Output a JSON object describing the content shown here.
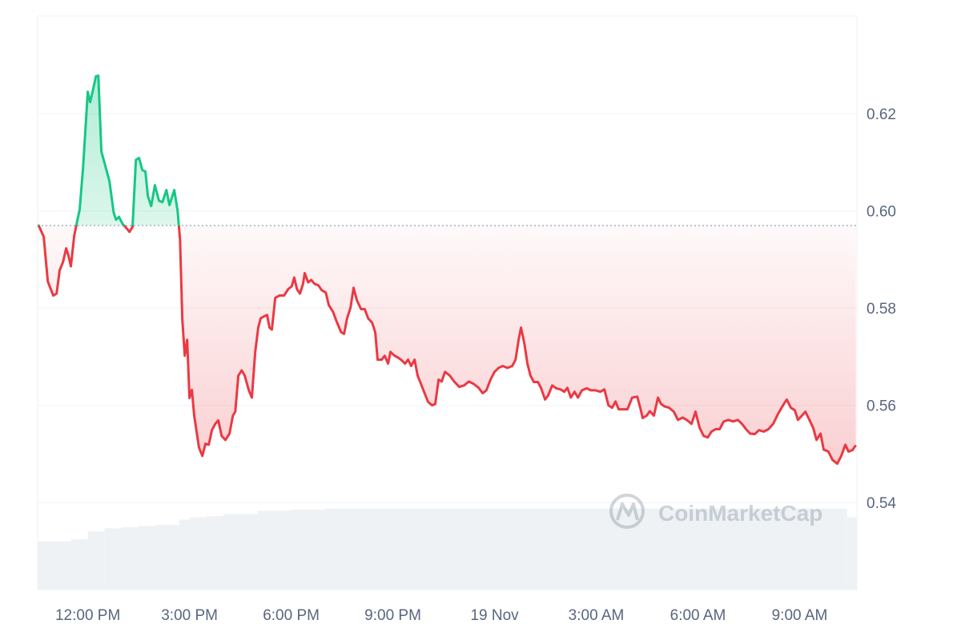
{
  "chart_data": {
    "type": "line",
    "watermark": "CoinMarketCap",
    "baseline": 0.597,
    "up_color": "#16c784",
    "down_color": "#ea3943",
    "grid": true,
    "xlim": [
      10.52,
      34.69
    ],
    "xticks": [
      {
        "value": 12,
        "label": "12:00 PM"
      },
      {
        "value": 15,
        "label": "3:00 PM"
      },
      {
        "value": 18,
        "label": "6:00 PM"
      },
      {
        "value": 21,
        "label": "9:00 PM"
      },
      {
        "value": 24,
        "label": "19 Nov"
      },
      {
        "value": 27,
        "label": "3:00 AM"
      },
      {
        "value": 30,
        "label": "6:00 AM"
      },
      {
        "value": 33,
        "label": "9:00 AM"
      }
    ],
    "ylim": [
      0.5221,
      0.6401
    ],
    "yticks": [
      {
        "value": 0.54,
        "label": "0.54"
      },
      {
        "value": 0.56,
        "label": "0.56"
      },
      {
        "value": 0.58,
        "label": "0.58"
      },
      {
        "value": 0.6,
        "label": "0.60"
      },
      {
        "value": 0.62,
        "label": "0.62"
      }
    ],
    "x": [
      10.54,
      10.7,
      10.82,
      10.98,
      11.08,
      11.17,
      11.27,
      11.36,
      11.43,
      11.5,
      11.6,
      11.69,
      11.76,
      11.86,
      12.0,
      12.07,
      12.14,
      12.24,
      12.31,
      12.4,
      12.5,
      12.64,
      12.76,
      12.83,
      12.92,
      13.02,
      13.11,
      13.23,
      13.32,
      13.42,
      13.51,
      13.61,
      13.7,
      13.77,
      13.87,
      13.98,
      14.1,
      14.2,
      14.32,
      14.41,
      14.55,
      14.65,
      14.72,
      14.79,
      14.86,
      14.93,
      15.0,
      15.07,
      15.14,
      15.28,
      15.38,
      15.47,
      15.57,
      15.66,
      15.76,
      15.85,
      15.95,
      16.06,
      16.18,
      16.28,
      16.35,
      16.44,
      16.54,
      16.63,
      16.75,
      16.84,
      16.94,
      17.03,
      17.1,
      17.2,
      17.29,
      17.36,
      17.43,
      17.53,
      17.65,
      17.79,
      17.91,
      18.02,
      18.09,
      18.17,
      18.26,
      18.35,
      18.4,
      18.5,
      18.59,
      18.69,
      18.8,
      18.9,
      19.02,
      19.11,
      19.23,
      19.32,
      19.47,
      19.56,
      19.65,
      19.75,
      19.84,
      19.94,
      20.06,
      20.17,
      20.27,
      20.39,
      20.48,
      20.55,
      20.67,
      20.76,
      20.86,
      20.93,
      21.05,
      21.14,
      21.24,
      21.36,
      21.45,
      21.54,
      21.64,
      21.73,
      21.83,
      21.92,
      22.04,
      22.16,
      22.25,
      22.35,
      22.44,
      22.54,
      22.68,
      22.82,
      22.96,
      23.1,
      23.24,
      23.39,
      23.53,
      23.65,
      23.76,
      23.88,
      24.0,
      24.12,
      24.24,
      24.38,
      24.52,
      24.62,
      24.71,
      24.78,
      24.88,
      24.97,
      25.06,
      25.16,
      25.28,
      25.37,
      25.49,
      25.58,
      25.7,
      25.82,
      25.94,
      26.06,
      26.15,
      26.25,
      26.36,
      26.46,
      26.58,
      26.72,
      26.84,
      26.98,
      27.12,
      27.24,
      27.36,
      27.47,
      27.57,
      27.66,
      27.78,
      27.92,
      28.06,
      28.21,
      28.3,
      28.37,
      28.49,
      28.58,
      28.7,
      28.82,
      28.91,
      29.01,
      29.15,
      29.29,
      29.41,
      29.55,
      29.67,
      29.81,
      29.93,
      30.05,
      30.17,
      30.29,
      30.4,
      30.52,
      30.64,
      30.76,
      30.9,
      31.04,
      31.18,
      31.3,
      31.42,
      31.54,
      31.68,
      31.8,
      31.94,
      32.08,
      32.22,
      32.36,
      32.51,
      32.62,
      32.74,
      32.86,
      32.95,
      33.07,
      33.17,
      33.29,
      33.4,
      33.5,
      33.62,
      33.71,
      33.85,
      33.97,
      34.11,
      34.23,
      34.35,
      34.44,
      34.56,
      34.66
    ],
    "values": [
      0.5972,
      0.5947,
      0.5855,
      0.5826,
      0.583,
      0.5878,
      0.5895,
      0.5923,
      0.5908,
      0.5886,
      0.5949,
      0.598,
      0.6003,
      0.6089,
      0.6245,
      0.6224,
      0.6245,
      0.6277,
      0.6278,
      0.6122,
      0.6097,
      0.6061,
      0.5998,
      0.5982,
      0.5988,
      0.5974,
      0.5967,
      0.5957,
      0.5967,
      0.6105,
      0.6109,
      0.6084,
      0.6081,
      0.6031,
      0.601,
      0.6053,
      0.6021,
      0.6018,
      0.6043,
      0.6012,
      0.6043,
      0.6,
      0.5941,
      0.5776,
      0.5702,
      0.5735,
      0.5615,
      0.5632,
      0.5579,
      0.5513,
      0.5496,
      0.5521,
      0.5519,
      0.5549,
      0.5562,
      0.5569,
      0.5537,
      0.5529,
      0.5542,
      0.5579,
      0.5587,
      0.5661,
      0.5672,
      0.5661,
      0.5631,
      0.5616,
      0.571,
      0.576,
      0.5779,
      0.5783,
      0.5786,
      0.576,
      0.5756,
      0.5821,
      0.5826,
      0.5826,
      0.5839,
      0.5845,
      0.5863,
      0.5839,
      0.583,
      0.585,
      0.5872,
      0.5853,
      0.5858,
      0.585,
      0.5847,
      0.5837,
      0.5832,
      0.5806,
      0.5793,
      0.5776,
      0.5751,
      0.5747,
      0.5779,
      0.5801,
      0.5842,
      0.5816,
      0.5798,
      0.5798,
      0.5779,
      0.577,
      0.575,
      0.5694,
      0.5694,
      0.5702,
      0.5686,
      0.571,
      0.5702,
      0.5699,
      0.5694,
      0.5686,
      0.5694,
      0.5681,
      0.5694,
      0.5661,
      0.5644,
      0.5628,
      0.5607,
      0.56,
      0.5603,
      0.5653,
      0.5649,
      0.5669,
      0.5661,
      0.5648,
      0.5638,
      0.5641,
      0.5649,
      0.5644,
      0.5636,
      0.5625,
      0.5631,
      0.5653,
      0.5669,
      0.5677,
      0.5681,
      0.5677,
      0.5681,
      0.5694,
      0.5735,
      0.576,
      0.5727,
      0.5686,
      0.5661,
      0.5648,
      0.5648,
      0.5636,
      0.5612,
      0.562,
      0.5641,
      0.5635,
      0.5633,
      0.5628,
      0.5636,
      0.5616,
      0.5628,
      0.5616,
      0.5631,
      0.5635,
      0.5631,
      0.5631,
      0.5628,
      0.5633,
      0.56,
      0.5595,
      0.5608,
      0.5592,
      0.5592,
      0.5592,
      0.5616,
      0.5618,
      0.5595,
      0.5574,
      0.5579,
      0.5588,
      0.5579,
      0.5616,
      0.5603,
      0.5598,
      0.5595,
      0.5587,
      0.557,
      0.5575,
      0.557,
      0.5562,
      0.5587,
      0.5554,
      0.5537,
      0.5534,
      0.5546,
      0.5551,
      0.5551,
      0.5567,
      0.557,
      0.5567,
      0.557,
      0.5562,
      0.5551,
      0.5542,
      0.5541,
      0.5549,
      0.5546,
      0.5551,
      0.5562,
      0.5582,
      0.56,
      0.5612,
      0.5595,
      0.559,
      0.557,
      0.5579,
      0.5587,
      0.557,
      0.5554,
      0.5529,
      0.5542,
      0.5509,
      0.5505,
      0.5488,
      0.548,
      0.5496,
      0.5519,
      0.5505,
      0.5508,
      0.5518
    ],
    "volume": {
      "color": "#eff2f5",
      "ylim": [
        0,
        100
      ],
      "x": [
        10.52,
        11.5,
        12.0,
        12.5,
        13.0,
        13.5,
        14.0,
        14.7,
        15.0,
        15.5,
        16.0,
        17.0,
        18.0,
        19.0,
        34.4
      ],
      "values": [
        44,
        46,
        53,
        56,
        57,
        58,
        59,
        64,
        66,
        67,
        69,
        72,
        73,
        74,
        66
      ]
    }
  }
}
